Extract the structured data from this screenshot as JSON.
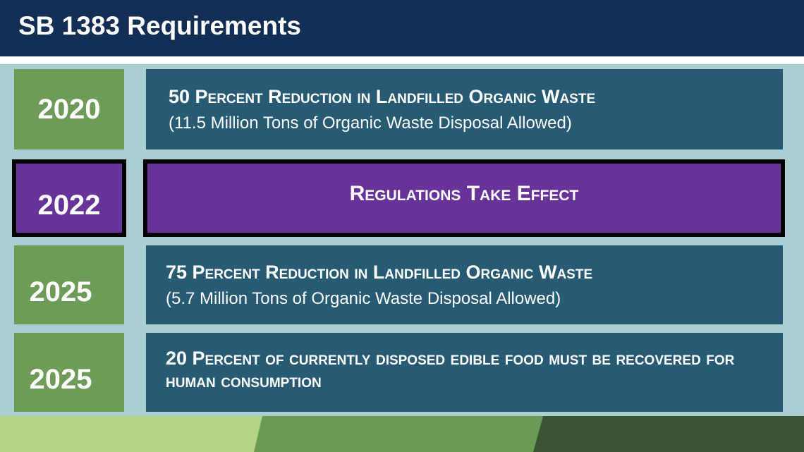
{
  "header": {
    "title": "SB 1383 Requirements"
  },
  "rows": [
    {
      "year": "2020",
      "heading": "50 Percent Reduction in Landfilled Organic Waste",
      "detail": "(11.5 Million Tons of Organic Waste Disposal Allowed)"
    },
    {
      "year": "2022",
      "heading": "Regulations Take Effect"
    },
    {
      "year": "2025",
      "heading": "75 Percent Reduction in Landfilled Organic Waste",
      "detail": "(5.7 Million Tons of Organic Waste Disposal Allowed)"
    },
    {
      "year": "2025",
      "heading": "20 Percent of currently disposed edible food must be recovered for human consumption"
    }
  ]
}
